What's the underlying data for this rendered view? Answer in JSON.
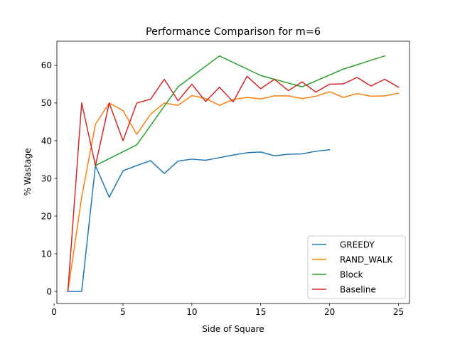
{
  "chart_data": {
    "type": "line",
    "title": "Performance Comparison for m=6",
    "xlabel": "Side of Square",
    "ylabel": "% Wastage",
    "xlim": [
      0.2,
      25.8
    ],
    "ylim": [
      -3.2,
      66.4
    ],
    "xticks": [
      0,
      5,
      10,
      15,
      20,
      25
    ],
    "yticks": [
      0,
      10,
      20,
      30,
      40,
      50,
      60
    ],
    "grid": false,
    "legend_position": "lower-right",
    "series": [
      {
        "name": "GREEDY",
        "color": "#1f77b4",
        "x": [
          1,
          2,
          3,
          4,
          5,
          6,
          7,
          8,
          9,
          10,
          11,
          12,
          13,
          14,
          15,
          16,
          17,
          18,
          19,
          20
        ],
        "y": [
          0,
          0,
          33.4,
          25,
          32,
          33.4,
          34.7,
          31.3,
          34.6,
          35.1,
          34.8,
          35.5,
          36.2,
          36.8,
          37,
          36,
          36.4,
          36.5,
          37.2,
          37.6
        ]
      },
      {
        "name": "RAND_WALK",
        "color": "#ff7f0e",
        "x": [
          1,
          2,
          3,
          4,
          5,
          6,
          7,
          8,
          9,
          10,
          11,
          12,
          13,
          14,
          15,
          16,
          17,
          18,
          19,
          20,
          21,
          22,
          23,
          24,
          25
        ],
        "y": [
          0,
          25,
          44.4,
          50,
          48,
          41.7,
          47,
          50,
          49.4,
          52,
          51.2,
          49.4,
          50.9,
          51.5,
          51.1,
          51.9,
          51.9,
          51.2,
          51.8,
          53,
          51.5,
          52.5,
          51.8,
          51.9,
          52.6
        ]
      },
      {
        "name": "Block",
        "color": "#2ca02c",
        "x": [
          3,
          6,
          9,
          12,
          15,
          18,
          21,
          24
        ],
        "y": [
          33.4,
          38.9,
          54.3,
          62.5,
          57.3,
          54.3,
          59,
          62.5
        ]
      },
      {
        "name": "Baseline",
        "color": "#d62728",
        "x": [
          1,
          2,
          3,
          4,
          5,
          6,
          7,
          8,
          9,
          10,
          11,
          12,
          13,
          14,
          15,
          16,
          17,
          18,
          19,
          20,
          21,
          22,
          23,
          24,
          25
        ],
        "y": [
          0,
          50,
          33.4,
          50,
          40,
          50,
          51,
          56.3,
          50.6,
          55,
          50.4,
          54.2,
          50.3,
          57.1,
          53.8,
          56.3,
          53.3,
          55.6,
          52.9,
          55,
          55.1,
          56.8,
          54.5,
          56.3,
          54.2
        ]
      }
    ]
  }
}
